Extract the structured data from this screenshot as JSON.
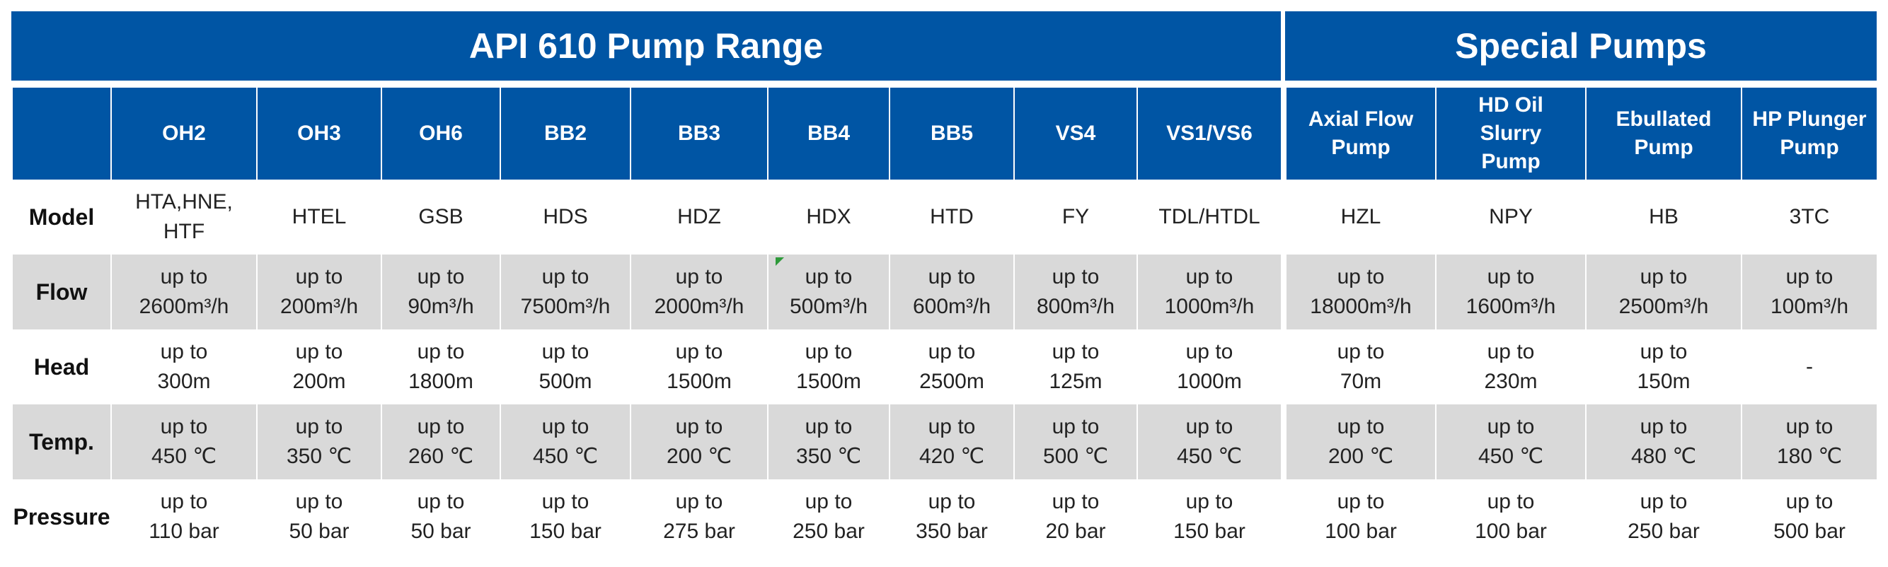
{
  "api610": {
    "title": "API 610 Pump Range",
    "row_labels": [
      "Model",
      "Flow",
      "Head",
      "Temp.",
      "Pressure"
    ],
    "columns": [
      {
        "header": "OH2",
        "model": "HTA,HNE,\nHTF",
        "flow": "up to\n2600m³/h",
        "head": "up to\n300m",
        "temp": "up to\n450 ℃",
        "pressure": "up to\n110 bar"
      },
      {
        "header": "OH3",
        "model": "HTEL",
        "flow": "up to\n200m³/h",
        "head": "up to\n200m",
        "temp": "up to\n350 ℃",
        "pressure": "up to\n50 bar"
      },
      {
        "header": "OH6",
        "model": "GSB",
        "flow": "up to\n90m³/h",
        "head": "up to\n1800m",
        "temp": "up to\n260 ℃",
        "pressure": "up to\n50 bar"
      },
      {
        "header": "BB2",
        "model": "HDS",
        "flow": "up to\n7500m³/h",
        "head": "up to\n500m",
        "temp": "up to\n450 ℃",
        "pressure": "up to\n150 bar"
      },
      {
        "header": "BB3",
        "model": "HDZ",
        "flow": "up to\n2000m³/h",
        "head": "up to\n1500m",
        "temp": "up to\n200 ℃",
        "pressure": "up to\n275 bar"
      },
      {
        "header": "BB4",
        "model": "HDX",
        "flow": "up to\n500m³/h",
        "head": "up to\n1500m",
        "temp": "up to\n350 ℃",
        "pressure": "up to\n250 bar"
      },
      {
        "header": "BB5",
        "model": "HTD",
        "flow": "up to\n600m³/h",
        "head": "up to\n2500m",
        "temp": "up to\n420 ℃",
        "pressure": "up to\n350 bar"
      },
      {
        "header": "VS4",
        "model": "FY",
        "flow": "up to\n800m³/h",
        "head": "up to\n125m",
        "temp": "up to\n500 ℃",
        "pressure": "up to\n20 bar"
      },
      {
        "header": "VS1/VS6",
        "model": "TDL/HTDL",
        "flow": "up to\n1000m³/h",
        "head": "up to\n1000m",
        "temp": "up to\n450 ℃",
        "pressure": "up to\n150 bar"
      }
    ]
  },
  "special": {
    "title": "Special Pumps",
    "columns": [
      {
        "header": "Axial Flow\nPump",
        "model": "HZL",
        "flow": "up to\n18000m³/h",
        "head": "up to\n70m",
        "temp": "up to\n200 ℃",
        "pressure": "up to\n100 bar"
      },
      {
        "header": "HD Oil\nSlurry\nPump",
        "model": "NPY",
        "flow": "up to\n1600m³/h",
        "head": "up to\n230m",
        "temp": "up to\n450 ℃",
        "pressure": "up to\n100 bar"
      },
      {
        "header": "Ebullated\nPump",
        "model": "HB",
        "flow": "up to\n2500m³/h",
        "head": "up to\n150m",
        "temp": "up to\n480 ℃",
        "pressure": "up to\n250 bar"
      },
      {
        "header": "HP Plunger\nPump",
        "model": "3TC",
        "flow": "up to\n100m³/h",
        "head": "-",
        "temp": "up to\n180 ℃",
        "pressure": "up to\n500 bar"
      }
    ]
  },
  "colors": {
    "header_blue": "#0055a4",
    "row_alt": "#d9d9d9",
    "marker_green": "#2e9a3a"
  }
}
